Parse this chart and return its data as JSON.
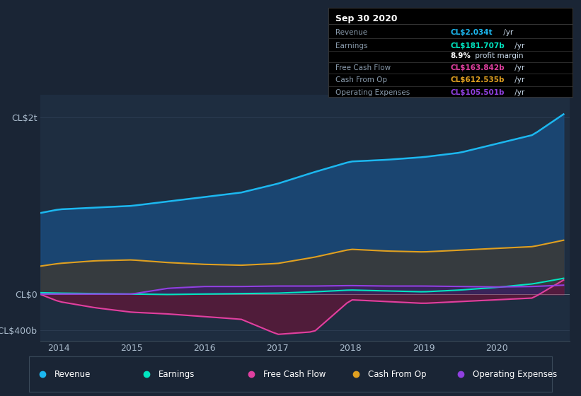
{
  "bg_color": "#1a2535",
  "plot_bg_color": "#1e2d40",
  "grid_color": "#2a3a50",
  "yticks": [
    -400,
    0,
    2000
  ],
  "ytick_labels": [
    "-CL$400b",
    "CL$0",
    "CL$2t"
  ],
  "ylim": [
    -520,
    2250
  ],
  "xlim": [
    2013.75,
    2021.0
  ],
  "xtick_years": [
    2014,
    2015,
    2016,
    2017,
    2018,
    2019,
    2020
  ],
  "revenue_color": "#1cb8f0",
  "revenue_fill": "#1a4a7a",
  "earnings_color": "#00e5c0",
  "fcf_color": "#e040a0",
  "fcf_fill": "#5a1a3a",
  "cashop_color": "#e0a020",
  "cashop_fill": "#3a3a3a",
  "opex_color": "#9040e0",
  "opex_fill": "#3a2060",
  "legend_items": [
    {
      "label": "Revenue",
      "color": "#1cb8f0"
    },
    {
      "label": "Earnings",
      "color": "#00e5c0"
    },
    {
      "label": "Free Cash Flow",
      "color": "#e040a0"
    },
    {
      "label": "Cash From Op",
      "color": "#e0a020"
    },
    {
      "label": "Operating Expenses",
      "color": "#9040e0"
    }
  ],
  "box_date": "Sep 30 2020",
  "box_rows": [
    {
      "label": "Revenue",
      "value": "CL$2.034t",
      "unit": " /yr",
      "color": "#1cb8f0"
    },
    {
      "label": "Earnings",
      "value": "CL$181.707b",
      "unit": " /yr",
      "color": "#00e5c0"
    },
    {
      "label": "",
      "value": "8.9%",
      "unit": " profit margin",
      "color": "#ffffff"
    },
    {
      "label": "Free Cash Flow",
      "value": "CL$163.842b",
      "unit": " /yr",
      "color": "#e040a0"
    },
    {
      "label": "Cash From Op",
      "value": "CL$612.535b",
      "unit": " /yr",
      "color": "#e0a020"
    },
    {
      "label": "Operating Expenses",
      "value": "CL$105.501b",
      "unit": " /yr",
      "color": "#9040e0"
    }
  ]
}
